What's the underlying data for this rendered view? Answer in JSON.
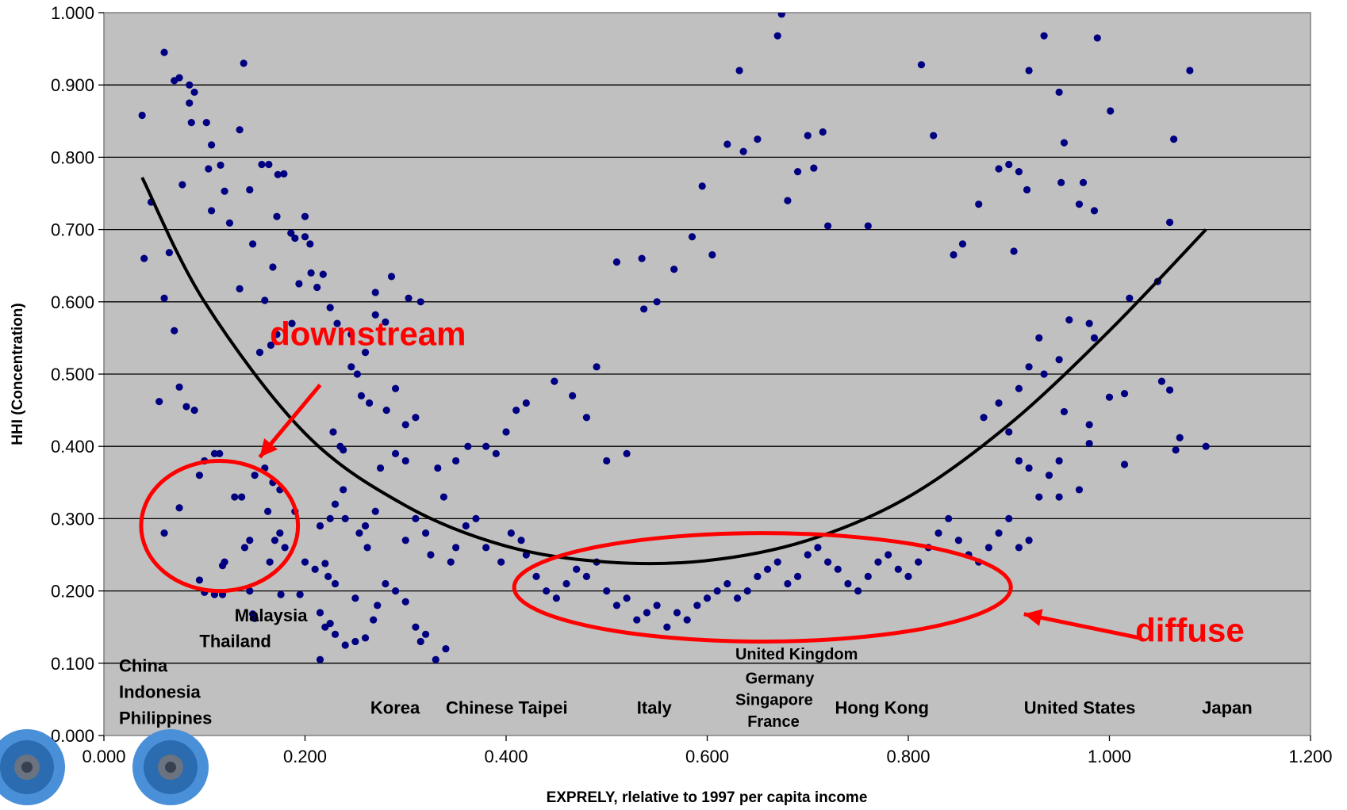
{
  "colors": {
    "plot_background": "#c0c0c0",
    "point": "#000080",
    "fit_line": "#000000",
    "annotation": "#ff0000",
    "gear": "#4a90d9"
  },
  "chart_data": {
    "type": "scatter",
    "title": "",
    "xlabel": "EXPRELY, rlelative to 1997 per capita income",
    "ylabel": "HHI (Concentration)",
    "xlim": [
      0,
      1.2
    ],
    "ylim": [
      0,
      1.0
    ],
    "x_ticks": [
      "0.000",
      "0.200",
      "0.400",
      "0.600",
      "0.800",
      "1.000",
      "1.200"
    ],
    "y_ticks": [
      "0.000",
      "0.100",
      "0.200",
      "0.300",
      "0.400",
      "0.500",
      "0.600",
      "0.700",
      "0.800",
      "0.900",
      "1.000"
    ],
    "grid": "horizontal",
    "points": [
      [
        0.038,
        0.858
      ],
      [
        0.06,
        0.945
      ],
      [
        0.07,
        0.906
      ],
      [
        0.075,
        0.91
      ],
      [
        0.085,
        0.9
      ],
      [
        0.09,
        0.89
      ],
      [
        0.087,
        0.848
      ],
      [
        0.102,
        0.848
      ],
      [
        0.107,
        0.817
      ],
      [
        0.085,
        0.875
      ],
      [
        0.139,
        0.93
      ],
      [
        0.135,
        0.838
      ],
      [
        0.116,
        0.789
      ],
      [
        0.12,
        0.753
      ],
      [
        0.145,
        0.755
      ],
      [
        0.157,
        0.79
      ],
      [
        0.164,
        0.79
      ],
      [
        0.173,
        0.776
      ],
      [
        0.179,
        0.777
      ],
      [
        0.172,
        0.718
      ],
      [
        0.125,
        0.709
      ],
      [
        0.104,
        0.784
      ],
      [
        0.107,
        0.726
      ],
      [
        0.078,
        0.762
      ],
      [
        0.047,
        0.738
      ],
      [
        0.065,
        0.668
      ],
      [
        0.04,
        0.66
      ],
      [
        0.06,
        0.605
      ],
      [
        0.07,
        0.56
      ],
      [
        0.075,
        0.482
      ],
      [
        0.055,
        0.462
      ],
      [
        0.082,
        0.455
      ],
      [
        0.09,
        0.45
      ],
      [
        0.135,
        0.618
      ],
      [
        0.16,
        0.602
      ],
      [
        0.148,
        0.68
      ],
      [
        0.168,
        0.648
      ],
      [
        0.19,
        0.688
      ],
      [
        0.2,
        0.69
      ],
      [
        0.186,
        0.695
      ],
      [
        0.2,
        0.718
      ],
      [
        0.205,
        0.68
      ],
      [
        0.194,
        0.625
      ],
      [
        0.206,
        0.64
      ],
      [
        0.212,
        0.62
      ],
      [
        0.218,
        0.638
      ],
      [
        0.225,
        0.592
      ],
      [
        0.232,
        0.57
      ],
      [
        0.172,
        0.555
      ],
      [
        0.166,
        0.54
      ],
      [
        0.187,
        0.57
      ],
      [
        0.155,
        0.53
      ],
      [
        0.246,
        0.555
      ],
      [
        0.26,
        0.53
      ],
      [
        0.27,
        0.613
      ],
      [
        0.286,
        0.635
      ],
      [
        0.303,
        0.605
      ],
      [
        0.315,
        0.6
      ],
      [
        0.27,
        0.582
      ],
      [
        0.28,
        0.572
      ],
      [
        0.246,
        0.51
      ],
      [
        0.252,
        0.5
      ],
      [
        0.256,
        0.47
      ],
      [
        0.264,
        0.46
      ],
      [
        0.281,
        0.45
      ],
      [
        0.29,
        0.48
      ],
      [
        0.3,
        0.43
      ],
      [
        0.31,
        0.44
      ],
      [
        0.228,
        0.42
      ],
      [
        0.238,
        0.395
      ],
      [
        0.29,
        0.39
      ],
      [
        0.275,
        0.37
      ],
      [
        0.3,
        0.38
      ],
      [
        0.332,
        0.37
      ],
      [
        0.338,
        0.33
      ],
      [
        0.35,
        0.38
      ],
      [
        0.362,
        0.4
      ],
      [
        0.38,
        0.4
      ],
      [
        0.39,
        0.39
      ],
      [
        0.4,
        0.42
      ],
      [
        0.41,
        0.45
      ],
      [
        0.42,
        0.46
      ],
      [
        0.448,
        0.49
      ],
      [
        0.466,
        0.47
      ],
      [
        0.48,
        0.44
      ],
      [
        0.49,
        0.51
      ],
      [
        0.5,
        0.38
      ],
      [
        0.52,
        0.39
      ],
      [
        0.51,
        0.655
      ],
      [
        0.535,
        0.66
      ],
      [
        0.537,
        0.59
      ],
      [
        0.55,
        0.6
      ],
      [
        0.567,
        0.645
      ],
      [
        0.585,
        0.69
      ],
      [
        0.595,
        0.76
      ],
      [
        0.605,
        0.665
      ],
      [
        0.62,
        0.818
      ],
      [
        0.632,
        0.92
      ],
      [
        0.636,
        0.808
      ],
      [
        0.65,
        0.825
      ],
      [
        0.67,
        0.968
      ],
      [
        0.674,
        0.998
      ],
      [
        0.68,
        0.74
      ],
      [
        0.69,
        0.78
      ],
      [
        0.7,
        0.83
      ],
      [
        0.715,
        0.835
      ],
      [
        0.706,
        0.785
      ],
      [
        0.72,
        0.705
      ],
      [
        0.76,
        0.705
      ],
      [
        0.813,
        0.928
      ],
      [
        0.825,
        0.83
      ],
      [
        0.92,
        0.92
      ],
      [
        0.935,
        0.968
      ],
      [
        0.95,
        0.89
      ],
      [
        0.988,
        0.965
      ],
      [
        0.955,
        0.82
      ],
      [
        1.001,
        0.864
      ],
      [
        1.08,
        0.92
      ],
      [
        1.064,
        0.825
      ],
      [
        1.06,
        0.71
      ],
      [
        0.9,
        0.79
      ],
      [
        0.91,
        0.78
      ],
      [
        0.89,
        0.784
      ],
      [
        0.918,
        0.755
      ],
      [
        0.952,
        0.765
      ],
      [
        0.97,
        0.735
      ],
      [
        0.985,
        0.726
      ],
      [
        0.974,
        0.765
      ],
      [
        0.905,
        0.67
      ],
      [
        0.87,
        0.735
      ],
      [
        0.854,
        0.68
      ],
      [
        0.845,
        0.665
      ],
      [
        1.048,
        0.628
      ],
      [
        1.02,
        0.605
      ],
      [
        0.96,
        0.575
      ],
      [
        0.985,
        0.55
      ],
      [
        0.98,
        0.57
      ],
      [
        0.95,
        0.52
      ],
      [
        1.0,
        0.468
      ],
      [
        0.98,
        0.43
      ],
      [
        1.015,
        0.473
      ],
      [
        1.052,
        0.49
      ],
      [
        1.06,
        0.478
      ],
      [
        1.015,
        0.375
      ],
      [
        1.066,
        0.395
      ],
      [
        1.07,
        0.412
      ],
      [
        1.096,
        0.4
      ],
      [
        0.98,
        0.404
      ],
      [
        0.955,
        0.448
      ],
      [
        0.935,
        0.5
      ],
      [
        0.93,
        0.55
      ],
      [
        0.92,
        0.51
      ],
      [
        0.91,
        0.48
      ],
      [
        0.89,
        0.46
      ],
      [
        0.875,
        0.44
      ],
      [
        0.9,
        0.42
      ],
      [
        0.91,
        0.38
      ],
      [
        0.92,
        0.37
      ],
      [
        0.94,
        0.36
      ],
      [
        0.95,
        0.38
      ],
      [
        0.95,
        0.33
      ],
      [
        0.93,
        0.33
      ],
      [
        0.92,
        0.27
      ],
      [
        0.91,
        0.26
      ],
      [
        0.97,
        0.34
      ],
      [
        0.1,
        0.38
      ],
      [
        0.11,
        0.39
      ],
      [
        0.115,
        0.39
      ],
      [
        0.095,
        0.36
      ],
      [
        0.075,
        0.315
      ],
      [
        0.06,
        0.28
      ],
      [
        0.13,
        0.33
      ],
      [
        0.137,
        0.33
      ],
      [
        0.14,
        0.26
      ],
      [
        0.145,
        0.27
      ],
      [
        0.15,
        0.36
      ],
      [
        0.16,
        0.37
      ],
      [
        0.163,
        0.31
      ],
      [
        0.168,
        0.35
      ],
      [
        0.175,
        0.34
      ],
      [
        0.17,
        0.27
      ],
      [
        0.165,
        0.24
      ],
      [
        0.175,
        0.28
      ],
      [
        0.18,
        0.26
      ],
      [
        0.19,
        0.31
      ],
      [
        0.12,
        0.24
      ],
      [
        0.118,
        0.235
      ],
      [
        0.095,
        0.215
      ],
      [
        0.1,
        0.198
      ],
      [
        0.11,
        0.195
      ],
      [
        0.118,
        0.195
      ],
      [
        0.145,
        0.2
      ],
      [
        0.15,
        0.162
      ],
      [
        0.148,
        0.168
      ],
      [
        0.176,
        0.195
      ],
      [
        0.195,
        0.195
      ],
      [
        0.21,
        0.23
      ],
      [
        0.22,
        0.238
      ],
      [
        0.2,
        0.24
      ],
      [
        0.223,
        0.22
      ],
      [
        0.23,
        0.21
      ],
      [
        0.215,
        0.17
      ],
      [
        0.225,
        0.155
      ],
      [
        0.23,
        0.14
      ],
      [
        0.24,
        0.125
      ],
      [
        0.25,
        0.13
      ],
      [
        0.26,
        0.135
      ],
      [
        0.268,
        0.16
      ],
      [
        0.272,
        0.18
      ],
      [
        0.28,
        0.21
      ],
      [
        0.29,
        0.2
      ],
      [
        0.3,
        0.185
      ],
      [
        0.31,
        0.15
      ],
      [
        0.315,
        0.13
      ],
      [
        0.32,
        0.14
      ],
      [
        0.33,
        0.105
      ],
      [
        0.34,
        0.12
      ],
      [
        0.215,
        0.105
      ],
      [
        0.22,
        0.15
      ],
      [
        0.25,
        0.19
      ],
      [
        0.26,
        0.29
      ],
      [
        0.27,
        0.31
      ],
      [
        0.24,
        0.3
      ],
      [
        0.225,
        0.3
      ],
      [
        0.215,
        0.29
      ],
      [
        0.23,
        0.32
      ],
      [
        0.238,
        0.34
      ],
      [
        0.235,
        0.4
      ],
      [
        0.254,
        0.28
      ],
      [
        0.262,
        0.26
      ],
      [
        0.3,
        0.27
      ],
      [
        0.31,
        0.3
      ],
      [
        0.32,
        0.28
      ],
      [
        0.325,
        0.25
      ],
      [
        0.345,
        0.24
      ],
      [
        0.35,
        0.26
      ],
      [
        0.36,
        0.29
      ],
      [
        0.37,
        0.3
      ],
      [
        0.38,
        0.26
      ],
      [
        0.395,
        0.24
      ],
      [
        0.405,
        0.28
      ],
      [
        0.415,
        0.27
      ],
      [
        0.42,
        0.25
      ],
      [
        0.43,
        0.22
      ],
      [
        0.44,
        0.2
      ],
      [
        0.45,
        0.19
      ],
      [
        0.46,
        0.21
      ],
      [
        0.47,
        0.23
      ],
      [
        0.48,
        0.22
      ],
      [
        0.49,
        0.24
      ],
      [
        0.5,
        0.2
      ],
      [
        0.51,
        0.18
      ],
      [
        0.52,
        0.19
      ],
      [
        0.53,
        0.16
      ],
      [
        0.54,
        0.17
      ],
      [
        0.55,
        0.18
      ],
      [
        0.56,
        0.15
      ],
      [
        0.57,
        0.17
      ],
      [
        0.58,
        0.16
      ],
      [
        0.59,
        0.18
      ],
      [
        0.6,
        0.19
      ],
      [
        0.61,
        0.2
      ],
      [
        0.62,
        0.21
      ],
      [
        0.63,
        0.19
      ],
      [
        0.64,
        0.2
      ],
      [
        0.65,
        0.22
      ],
      [
        0.66,
        0.23
      ],
      [
        0.67,
        0.24
      ],
      [
        0.68,
        0.21
      ],
      [
        0.69,
        0.22
      ],
      [
        0.7,
        0.25
      ],
      [
        0.71,
        0.26
      ],
      [
        0.72,
        0.24
      ],
      [
        0.73,
        0.23
      ],
      [
        0.74,
        0.21
      ],
      [
        0.75,
        0.2
      ],
      [
        0.76,
        0.22
      ],
      [
        0.77,
        0.24
      ],
      [
        0.78,
        0.25
      ],
      [
        0.79,
        0.23
      ],
      [
        0.8,
        0.22
      ],
      [
        0.81,
        0.24
      ],
      [
        0.82,
        0.26
      ],
      [
        0.83,
        0.28
      ],
      [
        0.84,
        0.3
      ],
      [
        0.85,
        0.27
      ],
      [
        0.86,
        0.25
      ],
      [
        0.87,
        0.24
      ],
      [
        0.88,
        0.26
      ],
      [
        0.89,
        0.28
      ],
      [
        0.9,
        0.3
      ]
    ],
    "trend": {
      "type": "polynomial",
      "points": [
        [
          0.038,
          0.772
        ],
        [
          0.1,
          0.6
        ],
        [
          0.2,
          0.418
        ],
        [
          0.3,
          0.318
        ],
        [
          0.4,
          0.262
        ],
        [
          0.5,
          0.24
        ],
        [
          0.6,
          0.242
        ],
        [
          0.7,
          0.27
        ],
        [
          0.8,
          0.33
        ],
        [
          0.9,
          0.43
        ],
        [
          1.0,
          0.56
        ],
        [
          1.096,
          0.7
        ]
      ]
    },
    "annotations": [
      {
        "text": "downstream",
        "x": 0.165,
        "y": 0.54
      },
      {
        "text": "diffuse",
        "x": 1.08,
        "y": 0.13
      }
    ],
    "highlight_regions": [
      {
        "name": "downstream",
        "cx": 0.115,
        "cy": 0.29,
        "rx": 0.078,
        "ry": 0.09
      },
      {
        "name": "diffuse",
        "cx": 0.655,
        "cy": 0.205,
        "rx": 0.247,
        "ry": 0.075
      }
    ],
    "country_labels": [
      {
        "text": "Malaysia",
        "x": 0.13,
        "y": 0.158
      },
      {
        "text": "Thailand",
        "x": 0.095,
        "y": 0.122
      },
      {
        "text": "China",
        "x": 0.015,
        "y": 0.088
      },
      {
        "text": "Indonesia",
        "x": 0.015,
        "y": 0.052
      },
      {
        "text": "Philippines",
        "x": 0.015,
        "y": 0.016
      },
      {
        "text": "Korea",
        "x": 0.265,
        "y": 0.03
      },
      {
        "text": "Chinese Taipei",
        "x": 0.34,
        "y": 0.03
      },
      {
        "text": "Italy",
        "x": 0.53,
        "y": 0.03
      },
      {
        "text": "United Kingdom",
        "x": 0.628,
        "y": 0.105
      },
      {
        "text": "Germany",
        "x": 0.638,
        "y": 0.072
      },
      {
        "text": "Singapore",
        "x": 0.628,
        "y": 0.042
      },
      {
        "text": "France",
        "x": 0.64,
        "y": 0.012
      },
      {
        "text": "Hong Kong",
        "x": 0.727,
        "y": 0.03
      },
      {
        "text": "United States",
        "x": 0.915,
        "y": 0.03
      },
      {
        "text": "Japan",
        "x": 1.092,
        "y": 0.03
      }
    ]
  }
}
